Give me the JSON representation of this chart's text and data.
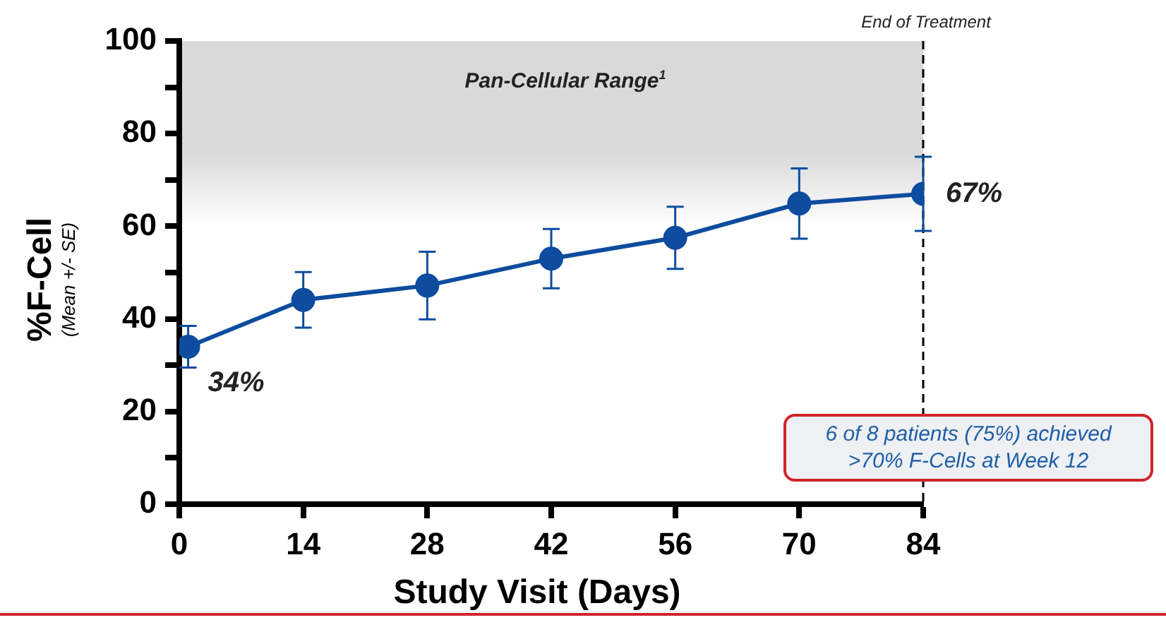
{
  "chart_data": {
    "type": "line",
    "xlabel": "Study Visit (Days)",
    "ylabel": "%F-Cell",
    "x": [
      1,
      14,
      28,
      42,
      56,
      70,
      84
    ],
    "series": [
      {
        "color": "#0d4c9e",
        "values": [
          34,
          44.1,
          47.2,
          53,
          57.5,
          64.9,
          67
        ],
        "errors": [
          4.5,
          6,
          7.3,
          6.4,
          6.7,
          7.6,
          8
        ],
        "value_labels": [
          "34%",
          null,
          null,
          null,
          null,
          null,
          "67%"
        ]
      }
    ],
    "xlim": [
      0,
      84
    ],
    "xticks": [
      0,
      14,
      28,
      42,
      56,
      70,
      84
    ],
    "ylim": [
      0,
      100
    ],
    "yticks": [
      0,
      {
        "value": 10,
        "label": null
      },
      20,
      {
        "value": 30,
        "label": null
      },
      40,
      {
        "value": 50,
        "label": null
      },
      60,
      {
        "value": 70,
        "label": null
      },
      80,
      {
        "value": 90,
        "label": null
      },
      100
    ],
    "grid": false,
    "legend": false,
    "marker": "circle",
    "line_style": "solid",
    "bands": [
      {
        "axis": "y",
        "from": 60,
        "to": 100,
        "label": "Pan-Cellular Range$^{1}$",
        "color": "#d9d9d9"
      }
    ],
    "ref_lines": [
      {
        "axis": "x",
        "value": 84,
        "label": "End of Treatment",
        "color": "#000000",
        "line_style": "dashed"
      }
    ],
    "annotations": [
      "(Mean +/- SE)",
      "6 of 8 patients (75%) achieved >70% F-Cells at Week 12"
    ]
  }
}
